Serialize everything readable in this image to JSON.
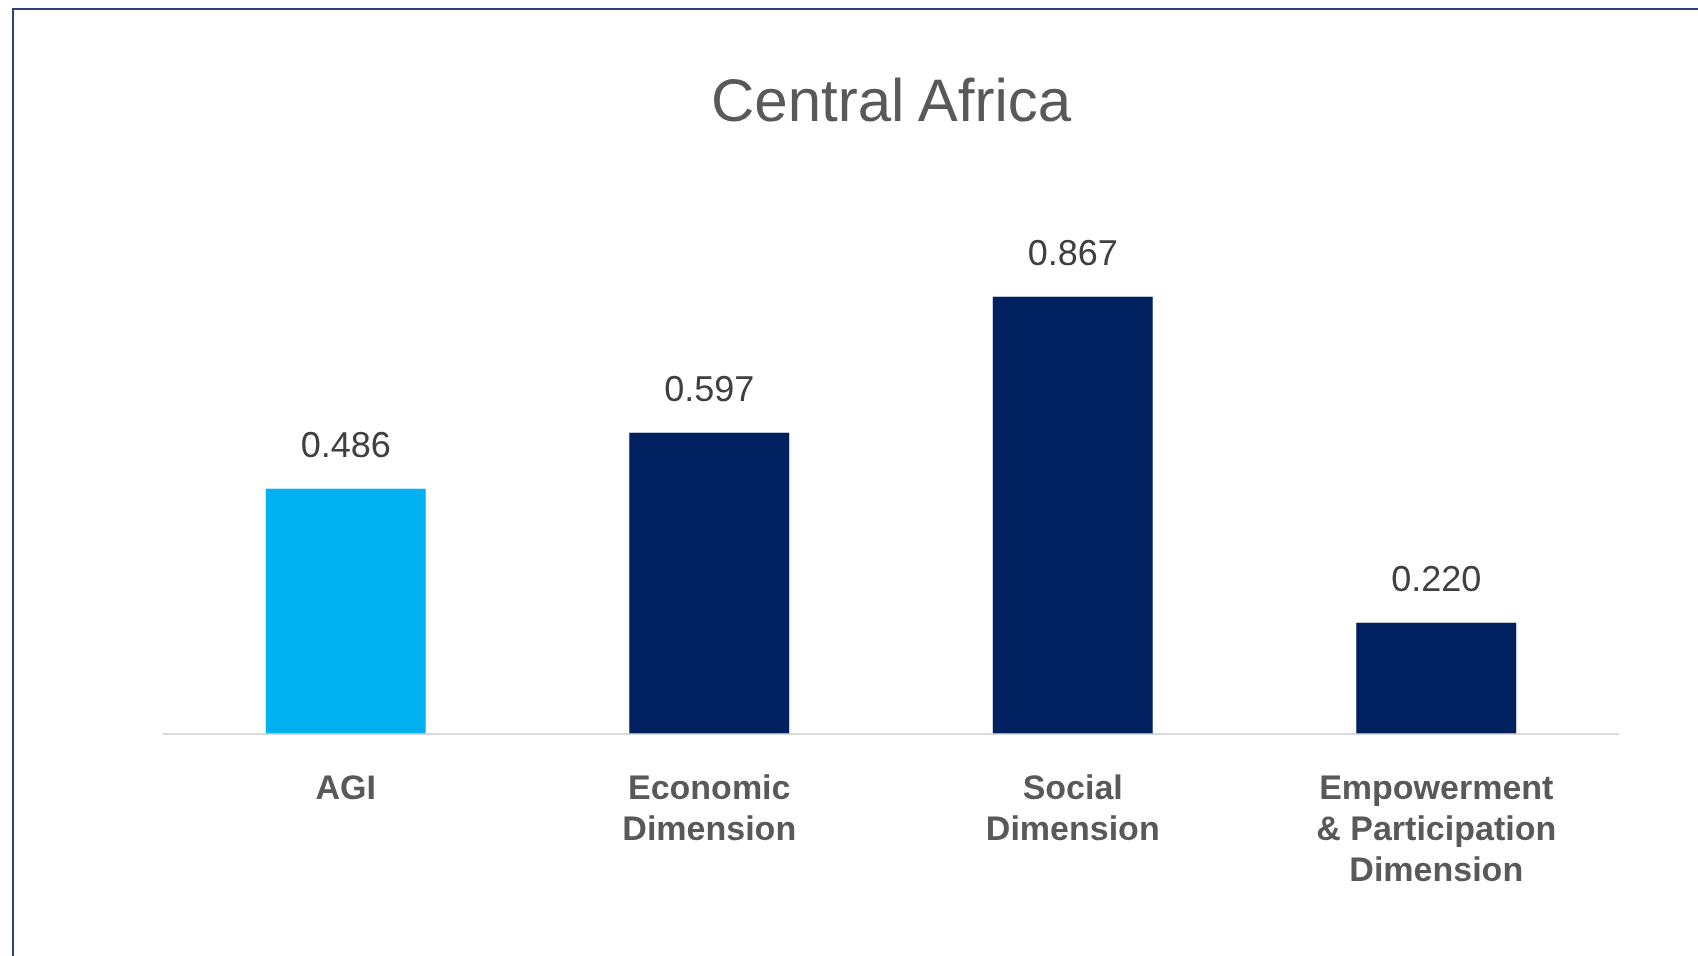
{
  "chart_data": {
    "type": "bar",
    "title": "Central Africa",
    "categories": [
      "AGI",
      "Economic Dimension",
      "Social Dimension",
      "Empowerment & Participation Dimension"
    ],
    "values": [
      0.486,
      0.597,
      0.867,
      0.22
    ],
    "colors": [
      "#00b0f0",
      "#002060",
      "#002060",
      "#002060"
    ],
    "value_labels": [
      "0.486",
      "0.597",
      "0.867",
      "0.220"
    ],
    "grid": false,
    "legend": false
  }
}
